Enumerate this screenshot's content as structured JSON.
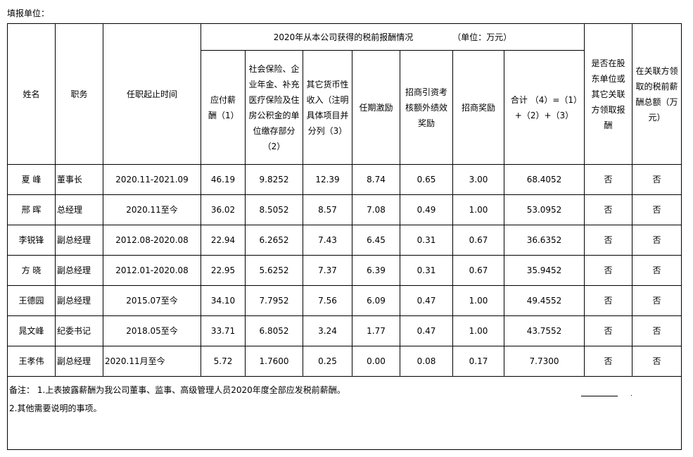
{
  "fill_unit_label": "填报单位：",
  "header": {
    "name": "姓名",
    "position": "职务",
    "term": "任职起止时间",
    "group_title": "2020年从本公司获得的税前报酬情况",
    "group_unit": "（单位：万元）",
    "col1": "应付薪酬（1）",
    "col2": "社会保险、企业年金、补充医疗保险及住房公积金的单位缴存部分（2）",
    "col3": "其它货币性收入（注明具体项目并分列（3）",
    "col4": "任期激励",
    "col5": "招商引资考核额外绩效奖励",
    "col6": "招商奖励",
    "col7": "合计 （4）=（1）+（2）+（3）",
    "col8": "是否在股东单位或其它关联方领取报酬",
    "col9": "在关联方领取的税前薪酬总额（万元）"
  },
  "rows": [
    {
      "name": "夏 峰",
      "position": "董事长",
      "term": "2020.11-2021.09",
      "c1": "46.19",
      "c2": "9.8252",
      "c3": "12.39",
      "c4": "8.74",
      "c5": "0.65",
      "c6": "3.00",
      "c7": "68.4052",
      "c8": "否",
      "c9": "否"
    },
    {
      "name": "邢 晖",
      "position": "总经理",
      "term": "2020.11至今",
      "c1": "36.02",
      "c2": "8.5052",
      "c3": "8.57",
      "c4": "7.08",
      "c5": "0.49",
      "c6": "1.00",
      "c7": "53.0952",
      "c8": "否",
      "c9": "否"
    },
    {
      "name": "李锐锋",
      "position": "副总经理",
      "term": "2012.08-2020.08",
      "c1": "22.94",
      "c2": "6.2652",
      "c3": "7.43",
      "c4": "6.45",
      "c5": "0.31",
      "c6": "0.67",
      "c7": "36.6352",
      "c8": "否",
      "c9": "否"
    },
    {
      "name": "方 晓",
      "position": "副总经理",
      "term": "2012.01-2020.08",
      "c1": "22.95",
      "c2": "5.6252",
      "c3": "7.37",
      "c4": "6.39",
      "c5": "0.31",
      "c6": "0.67",
      "c7": "35.9452",
      "c8": "否",
      "c9": "否"
    },
    {
      "name": "王德园",
      "position": "副总经理",
      "term": "2015.07至今",
      "c1": "34.10",
      "c2": "7.7952",
      "c3": "7.56",
      "c4": "6.09",
      "c5": "0.47",
      "c6": "1.00",
      "c7": "49.4552",
      "c8": "否",
      "c9": "否"
    },
    {
      "name": "晁文峰",
      "position": "纪委书记",
      "term": "2018.05至今",
      "c1": "33.71",
      "c2": "6.8052",
      "c3": "3.24",
      "c4": "1.77",
      "c5": "0.47",
      "c6": "1.00",
      "c7": "43.7552",
      "c8": "否",
      "c9": "否"
    },
    {
      "name": "王孝伟",
      "position": "副总经理",
      "term": "2020.11月至今",
      "c1": "5.72",
      "c2": "1.7600",
      "c3": "0.25",
      "c4": "0.00",
      "c5": "0.08",
      "c6": "0.17",
      "c7": "7.7300",
      "c8": "否",
      "c9": "否"
    }
  ],
  "remarks": {
    "line1": "备注： 1.上表披露薪酬为我公司董事、监事、高级管理人员2020年度全部应发税前薪酬。",
    "line2": "2.其他需要说明的事项。"
  }
}
